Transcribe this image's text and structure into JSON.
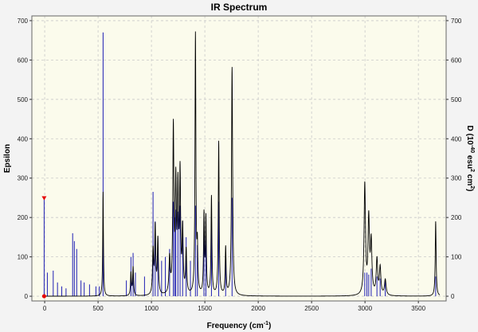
{
  "chart_data": {
    "type": "line",
    "title": "IR Spectrum",
    "xlabel": {
      "main": "Frequency (cm",
      "sup": "-1",
      "close": ")"
    },
    "ylabel_left": "Epsilon",
    "ylabel_right": {
      "p1": "D (10",
      "s1": "-40",
      "p2": " esu",
      "s2": "2",
      "p3": " cm",
      "s4": "2",
      "p4": ")"
    },
    "xlim": [
      -120,
      3760
    ],
    "ylim": [
      -12,
      712
    ],
    "x_ticks": [
      "0",
      "500",
      "1000",
      "1500",
      "2000",
      "2500",
      "3000",
      "3500"
    ],
    "x_tick_values": [
      0,
      500,
      1000,
      1500,
      2000,
      2500,
      3000,
      3500
    ],
    "y_ticks": [
      "0",
      "100",
      "200",
      "300",
      "400",
      "500",
      "600",
      "700"
    ],
    "y_tick_values": [
      0,
      100,
      200,
      300,
      400,
      500,
      600,
      700
    ],
    "grid": true,
    "colors": {
      "plot_bg": "#fbfbec",
      "grid": "#c9c9c9",
      "spectrum": "#000000",
      "sticks": "#1f1fb4",
      "marker": "#e60000",
      "frame": "#666666"
    },
    "series": [
      {
        "role": "spectrum",
        "peaks": [
          [
            547,
            265,
            4
          ],
          [
            808,
            58,
            5
          ],
          [
            828,
            72,
            5
          ],
          [
            1015,
            110,
            6
          ],
          [
            1035,
            170,
            6
          ],
          [
            1060,
            140,
            6
          ],
          [
            1170,
            90,
            7
          ],
          [
            1205,
            420,
            6
          ],
          [
            1228,
            270,
            6
          ],
          [
            1248,
            255,
            6
          ],
          [
            1268,
            300,
            6
          ],
          [
            1292,
            160,
            6
          ],
          [
            1325,
            110,
            6
          ],
          [
            1412,
            660,
            5
          ],
          [
            1430,
            110,
            5
          ],
          [
            1492,
            200,
            5
          ],
          [
            1510,
            190,
            5
          ],
          [
            1562,
            250,
            5
          ],
          [
            1630,
            390,
            5
          ],
          [
            1695,
            120,
            5
          ],
          [
            1755,
            580,
            6
          ],
          [
            2998,
            280,
            8
          ],
          [
            3035,
            190,
            8
          ],
          [
            3058,
            130,
            8
          ],
          [
            3112,
            90,
            8
          ],
          [
            3142,
            70,
            8
          ],
          [
            3190,
            40,
            9
          ],
          [
            3662,
            190,
            5
          ]
        ]
      },
      {
        "role": "sticks",
        "values": [
          [
            -5,
            250
          ],
          [
            25,
            60
          ],
          [
            80,
            65
          ],
          [
            120,
            35
          ],
          [
            160,
            25
          ],
          [
            200,
            20
          ],
          [
            262,
            160
          ],
          [
            278,
            140
          ],
          [
            300,
            120
          ],
          [
            340,
            40
          ],
          [
            370,
            35
          ],
          [
            420,
            30
          ],
          [
            480,
            25
          ],
          [
            512,
            25
          ],
          [
            547,
            670
          ],
          [
            765,
            40
          ],
          [
            808,
            100
          ],
          [
            828,
            110
          ],
          [
            850,
            60
          ],
          [
            935,
            50
          ],
          [
            1015,
            265
          ],
          [
            1035,
            190
          ],
          [
            1060,
            150
          ],
          [
            1095,
            90
          ],
          [
            1130,
            100
          ],
          [
            1170,
            120
          ],
          [
            1205,
            240
          ],
          [
            1218,
            200
          ],
          [
            1228,
            220
          ],
          [
            1248,
            215
          ],
          [
            1268,
            230
          ],
          [
            1292,
            190
          ],
          [
            1325,
            150
          ],
          [
            1365,
            90
          ],
          [
            1412,
            230
          ],
          [
            1430,
            130
          ],
          [
            1492,
            200
          ],
          [
            1510,
            190
          ],
          [
            1562,
            200
          ],
          [
            1630,
            240
          ],
          [
            1695,
            100
          ],
          [
            1755,
            250
          ],
          [
            2998,
            60
          ],
          [
            3018,
            60
          ],
          [
            3035,
            55
          ],
          [
            3058,
            70
          ],
          [
            3112,
            50
          ],
          [
            3142,
            45
          ],
          [
            3190,
            40
          ],
          [
            3662,
            50
          ]
        ]
      }
    ],
    "marker_points": [
      [
        -5,
        250
      ],
      [
        -5,
        0
      ]
    ]
  }
}
